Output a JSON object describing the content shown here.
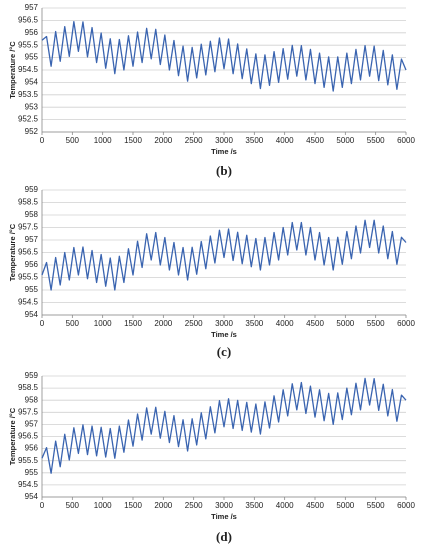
{
  "chart_data": [
    {
      "type": "line",
      "caption": "(b)",
      "x_label": "Time /s",
      "y_label": "Temperature /°C",
      "color": "#3a64b0",
      "grid": true,
      "xlim": [
        0,
        6000
      ],
      "xticks": [
        0,
        500,
        1000,
        1500,
        2000,
        2500,
        3000,
        3500,
        4000,
        4500,
        5000,
        5500,
        6000
      ],
      "ylim": [
        952,
        957
      ],
      "yticks": [
        952,
        952.5,
        953,
        953.5,
        954,
        954.5,
        955,
        955.5,
        956,
        956.5,
        957
      ],
      "x": [
        0,
        75,
        150,
        225,
        300,
        375,
        450,
        525,
        600,
        675,
        750,
        825,
        900,
        975,
        1050,
        1125,
        1200,
        1275,
        1350,
        1425,
        1500,
        1575,
        1650,
        1725,
        1800,
        1875,
        1950,
        2025,
        2100,
        2175,
        2250,
        2325,
        2400,
        2475,
        2550,
        2625,
        2700,
        2775,
        2850,
        2925,
        3000,
        3075,
        3150,
        3225,
        3300,
        3375,
        3450,
        3525,
        3600,
        3675,
        3750,
        3825,
        3900,
        3975,
        4050,
        4125,
        4200,
        4275,
        4350,
        4425,
        4500,
        4575,
        4650,
        4725,
        4800,
        4875,
        4950,
        5025,
        5100,
        5175,
        5250,
        5325,
        5400,
        5475,
        5550,
        5625,
        5700,
        5775,
        5850,
        5925,
        6000
      ],
      "values": [
        955.7,
        955.85,
        954.65,
        956.05,
        954.85,
        956.25,
        955.05,
        956.45,
        955.25,
        956.44,
        955.03,
        956.21,
        954.8,
        955.99,
        954.57,
        955.76,
        954.35,
        955.73,
        954.5,
        955.88,
        954.65,
        956.03,
        954.8,
        956.18,
        954.95,
        956.14,
        954.72,
        955.91,
        954.5,
        955.69,
        954.27,
        955.46,
        954.05,
        955.41,
        954.18,
        955.54,
        954.3,
        955.66,
        954.43,
        955.79,
        954.55,
        955.75,
        954.35,
        955.55,
        954.15,
        955.35,
        953.95,
        955.15,
        953.75,
        955.11,
        953.88,
        955.24,
        954.0,
        955.36,
        954.13,
        955.49,
        954.25,
        955.48,
        954.1,
        955.33,
        953.95,
        955.18,
        953.8,
        955.03,
        953.65,
        955.03,
        953.8,
        955.18,
        953.95,
        955.33,
        954.1,
        955.48,
        954.25,
        955.46,
        954.07,
        955.29,
        953.9,
        955.11,
        953.72,
        954.94,
        954.5
      ]
    },
    {
      "type": "line",
      "caption": "(c)",
      "x_label": "Time /s",
      "y_label": "Temperature /°C",
      "color": "#3a64b0",
      "grid": true,
      "xlim": [
        0,
        6000
      ],
      "xticks": [
        0,
        500,
        1000,
        1500,
        2000,
        2500,
        3000,
        3500,
        4000,
        4500,
        5000,
        5500,
        6000
      ],
      "ylim": [
        954,
        959
      ],
      "yticks": [
        954,
        954.5,
        955,
        955.5,
        956,
        956.5,
        957,
        957.5,
        958,
        958.5,
        959
      ],
      "x": [
        0,
        75,
        150,
        225,
        300,
        375,
        450,
        525,
        600,
        675,
        750,
        825,
        900,
        975,
        1050,
        1125,
        1200,
        1275,
        1350,
        1425,
        1500,
        1575,
        1650,
        1725,
        1800,
        1875,
        1950,
        2025,
        2100,
        2175,
        2250,
        2325,
        2400,
        2475,
        2550,
        2625,
        2700,
        2775,
        2850,
        2925,
        3000,
        3075,
        3150,
        3225,
        3300,
        3375,
        3450,
        3525,
        3600,
        3675,
        3750,
        3825,
        3900,
        3975,
        4050,
        4125,
        4200,
        4275,
        4350,
        4425,
        4500,
        4575,
        4650,
        4725,
        4800,
        4875,
        4950,
        5025,
        5100,
        5175,
        5250,
        5325,
        5400,
        5475,
        5550,
        5625,
        5700,
        5775,
        5850,
        5925,
        6000
      ],
      "values": [
        955.6,
        956.1,
        955.0,
        956.3,
        955.2,
        956.5,
        955.4,
        956.7,
        955.6,
        956.72,
        955.45,
        956.58,
        955.3,
        956.42,
        955.15,
        956.28,
        955.0,
        956.35,
        955.3,
        956.65,
        955.6,
        956.95,
        955.9,
        957.25,
        956.2,
        957.3,
        956.0,
        957.1,
        955.8,
        956.9,
        955.6,
        956.7,
        955.4,
        956.71,
        955.63,
        956.94,
        955.85,
        957.16,
        956.08,
        957.39,
        956.3,
        957.44,
        956.18,
        957.31,
        956.05,
        957.19,
        955.93,
        957.06,
        955.8,
        957.1,
        956.0,
        957.3,
        956.2,
        957.5,
        956.4,
        957.7,
        956.6,
        957.7,
        956.4,
        957.5,
        956.2,
        957.3,
        956.0,
        957.1,
        955.8,
        957.11,
        956.03,
        957.34,
        956.25,
        957.56,
        956.48,
        957.79,
        956.7,
        957.79,
        956.48,
        957.56,
        956.25,
        957.34,
        956.03,
        957.11,
        956.9
      ]
    },
    {
      "type": "line",
      "caption": "(d)",
      "x_label": "Time /s",
      "y_label": "Temperature /°C",
      "color": "#3a64b0",
      "grid": true,
      "xlim": [
        0,
        6000
      ],
      "xticks": [
        0,
        500,
        1000,
        1500,
        2000,
        2500,
        3000,
        3500,
        4000,
        4500,
        5000,
        5500,
        6000
      ],
      "ylim": [
        954,
        959
      ],
      "yticks": [
        954,
        954.5,
        955,
        955.5,
        956,
        956.5,
        957,
        957.5,
        958,
        958.5,
        959
      ],
      "x": [
        0,
        75,
        150,
        225,
        300,
        375,
        450,
        525,
        600,
        675,
        750,
        825,
        900,
        975,
        1050,
        1125,
        1200,
        1275,
        1350,
        1425,
        1500,
        1575,
        1650,
        1725,
        1800,
        1875,
        1950,
        2025,
        2100,
        2175,
        2250,
        2325,
        2400,
        2475,
        2550,
        2625,
        2700,
        2775,
        2850,
        2925,
        3000,
        3075,
        3150,
        3225,
        3300,
        3375,
        3450,
        3525,
        3600,
        3675,
        3750,
        3825,
        3900,
        3975,
        4050,
        4125,
        4200,
        4275,
        4350,
        4425,
        4500,
        4575,
        4650,
        4725,
        4800,
        4875,
        4950,
        5025,
        5100,
        5175,
        5250,
        5325,
        5400,
        5475,
        5550,
        5625,
        5700,
        5775,
        5850,
        5925,
        6000
      ],
      "values": [
        955.6,
        956.04,
        954.98,
        956.31,
        955.25,
        956.59,
        955.53,
        956.86,
        955.8,
        956.98,
        955.75,
        956.93,
        955.7,
        956.88,
        955.65,
        956.83,
        955.6,
        956.93,
        955.85,
        957.18,
        956.1,
        957.43,
        956.35,
        957.68,
        956.6,
        957.71,
        956.43,
        957.54,
        956.25,
        957.36,
        956.08,
        957.19,
        955.9,
        957.23,
        956.15,
        957.48,
        956.4,
        957.73,
        956.65,
        957.98,
        956.9,
        958.06,
        956.83,
        957.99,
        956.75,
        957.91,
        956.68,
        957.84,
        956.6,
        957.93,
        956.85,
        958.18,
        957.1,
        958.43,
        957.35,
        958.68,
        957.6,
        958.73,
        957.45,
        958.58,
        957.3,
        958.43,
        957.15,
        958.28,
        957.0,
        958.3,
        957.2,
        958.5,
        957.4,
        958.7,
        957.6,
        958.9,
        957.8,
        958.89,
        957.58,
        958.66,
        957.35,
        958.44,
        957.13,
        958.21,
        958.0
      ]
    }
  ]
}
